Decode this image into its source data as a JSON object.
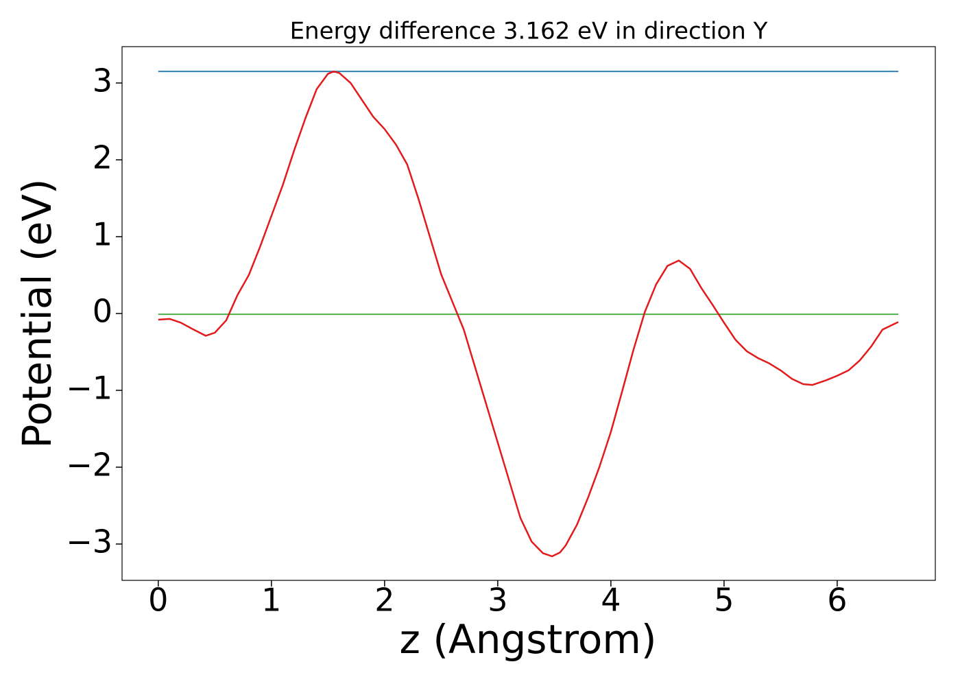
{
  "chart_data": {
    "type": "line",
    "title": "Energy difference 3.162 eV in direction Y",
    "x_label": "z (Angstrom)",
    "y_label": "Potential (eV)",
    "xlim": [
      -0.32,
      6.867
    ],
    "ylim": [
      -3.473,
      3.473
    ],
    "xticks": [
      0,
      1,
      2,
      3,
      4,
      5,
      6
    ],
    "yticks": [
      {
        "value": -3,
        "label": "−3"
      },
      {
        "value": -2,
        "label": "−2"
      },
      {
        "value": -1,
        "label": "−1"
      },
      0,
      1,
      2,
      3
    ],
    "series": [
      {
        "color": "#e31a1c",
        "x": [
          0,
          0.1,
          0.2,
          0.3,
          0.42,
          0.5,
          0.6,
          0.7,
          0.8,
          0.9,
          1.0,
          1.1,
          1.2,
          1.3,
          1.4,
          1.5,
          1.55,
          1.6,
          1.7,
          1.8,
          1.9,
          2.0,
          2.1,
          2.2,
          2.3,
          2.4,
          2.5,
          2.6,
          2.7,
          2.8,
          2.9,
          3.0,
          3.1,
          3.2,
          3.3,
          3.4,
          3.48,
          3.55,
          3.6,
          3.7,
          3.8,
          3.9,
          4.0,
          4.1,
          4.2,
          4.3,
          4.4,
          4.5,
          4.6,
          4.7,
          4.8,
          4.9,
          5.0,
          5.1,
          5.2,
          5.3,
          5.4,
          5.5,
          5.6,
          5.7,
          5.78,
          5.9,
          6.0,
          6.1,
          6.2,
          6.3,
          6.4,
          6.54
        ],
        "values": [
          -0.08,
          -0.07,
          -0.12,
          -0.2,
          -0.29,
          -0.25,
          -0.09,
          0.24,
          0.5,
          0.87,
          1.27,
          1.67,
          2.12,
          2.54,
          2.92,
          3.12,
          3.15,
          3.13,
          3.0,
          2.78,
          2.56,
          2.4,
          2.2,
          1.94,
          1.49,
          1.0,
          0.51,
          0.15,
          -0.21,
          -0.7,
          -1.19,
          -1.68,
          -2.17,
          -2.66,
          -2.97,
          -3.12,
          -3.16,
          -3.11,
          -3.02,
          -2.75,
          -2.39,
          -1.99,
          -1.54,
          -1.01,
          -0.47,
          0.02,
          0.38,
          0.62,
          0.69,
          0.58,
          0.33,
          0.11,
          -0.12,
          -0.34,
          -0.49,
          -0.58,
          -0.65,
          -0.74,
          -0.85,
          -0.92,
          -0.93,
          -0.87,
          -0.81,
          -0.74,
          -0.61,
          -0.43,
          -0.21,
          -0.11
        ]
      },
      {
        "color": "#2c7fb8",
        "x": [
          0,
          6.54
        ],
        "values": [
          3.15,
          3.15
        ]
      },
      {
        "color": "#4daf4a",
        "x": [
          0,
          6.54
        ],
        "values": [
          -0.01,
          -0.01
        ]
      }
    ]
  }
}
